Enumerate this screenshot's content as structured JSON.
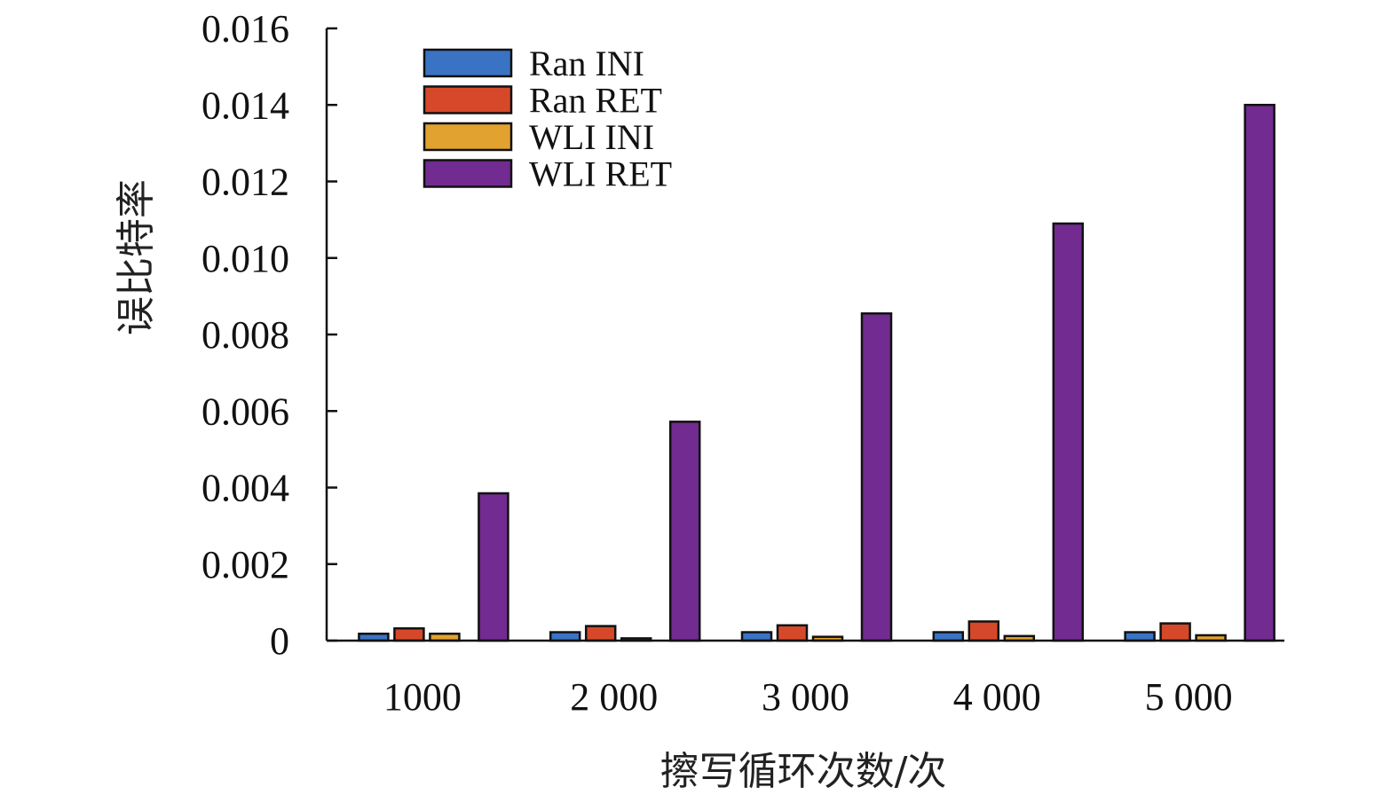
{
  "chart_data": {
    "type": "bar",
    "xlabel": "擦写循环次数/次",
    "ylabel": "误比特率",
    "ylim": [
      0,
      0.016
    ],
    "yticks": [
      "0",
      "0.002",
      "0.004",
      "0.006",
      "0.008",
      "0.010",
      "0.012",
      "0.014",
      "0.016"
    ],
    "categories": [
      "1000",
      "2 000",
      "3 000",
      "4 000",
      "5 000"
    ],
    "legend_position": "top-left",
    "grid": false,
    "series": [
      {
        "name": "Ran INI",
        "color": "#3a73c4",
        "values": [
          0.00018,
          0.00022,
          0.00022,
          0.00022,
          0.00022
        ]
      },
      {
        "name": "Ran RET",
        "color": "#d5492a",
        "values": [
          0.00032,
          0.00038,
          0.0004,
          0.0005,
          0.00045
        ]
      },
      {
        "name": "WLI INI",
        "color": "#e2a22f",
        "values": [
          0.00018,
          6e-05,
          0.0001,
          0.00012,
          0.00014
        ]
      },
      {
        "name": "WLI RET",
        "color": "#722b90",
        "values": [
          0.00385,
          0.00572,
          0.00855,
          0.0109,
          0.014
        ]
      }
    ]
  }
}
